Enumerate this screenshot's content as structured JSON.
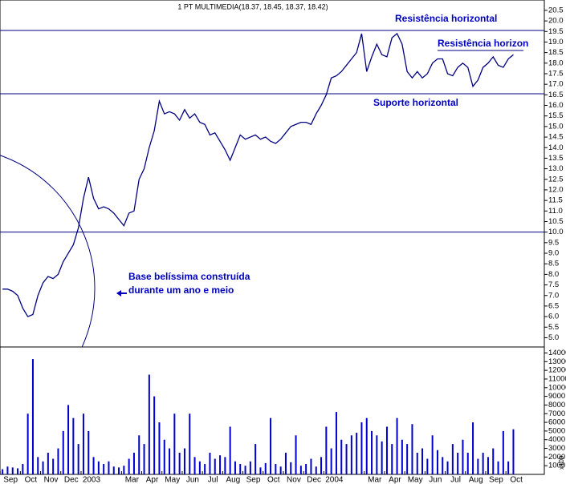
{
  "chart_data": [
    {
      "type": "line",
      "title": "1 PT MULTIMEDIA(18.37, 18.45, 18.37, 18.42)",
      "color": "#000080",
      "line_color": "#000080",
      "values": [
        7.3,
        7.3,
        7.2,
        7.0,
        6.4,
        6.0,
        6.1,
        7.0,
        7.6,
        7.9,
        7.8,
        8.0,
        8.6,
        9.0,
        9.4,
        10.2,
        11.6,
        12.6,
        11.6,
        11.1,
        11.2,
        11.1,
        10.9,
        10.6,
        10.3,
        10.9,
        11.0,
        12.5,
        13.0,
        14.0,
        14.8,
        16.2,
        15.6,
        15.7,
        15.6,
        15.3,
        15.8,
        15.4,
        15.6,
        15.2,
        15.1,
        14.6,
        14.7,
        14.3,
        13.9,
        13.4,
        14.0,
        14.6,
        14.4,
        14.5,
        14.6,
        14.4,
        14.5,
        14.3,
        14.2,
        14.4,
        14.7,
        15.0,
        15.1,
        15.2,
        15.2,
        15.1,
        15.6,
        16.0,
        16.5,
        17.3,
        17.4,
        17.6,
        17.9,
        18.2,
        18.5,
        19.4,
        17.6,
        18.3,
        18.9,
        18.4,
        18.3,
        19.2,
        19.4,
        18.9,
        17.6,
        17.3,
        17.6,
        17.3,
        17.5,
        18.0,
        18.2,
        18.2,
        17.5,
        17.4,
        17.8,
        18.0,
        17.8,
        16.9,
        17.2,
        17.8,
        18.0,
        18.3,
        17.9,
        17.8,
        18.2,
        18.4
      ],
      "ylim": [
        4.6,
        20.8
      ],
      "yticks": [
        {
          "value": 5,
          "label": "5.0"
        },
        5.5,
        {
          "value": 6,
          "label": "6.0"
        },
        6.5,
        {
          "value": 7,
          "label": "7.0"
        },
        7.5,
        {
          "value": 8,
          "label": "8.0"
        },
        8.5,
        {
          "value": 9,
          "label": "9.0"
        },
        9.5,
        {
          "value": 10,
          "label": "10.0"
        },
        10.5,
        {
          "value": 11,
          "label": "11.0"
        },
        11.5,
        {
          "value": 12,
          "label": "12.0"
        },
        12.5,
        {
          "value": 13,
          "label": "13.0"
        },
        13.5,
        {
          "value": 14,
          "label": "14.0"
        },
        14.5,
        {
          "value": 15,
          "label": "15.0"
        },
        15.5,
        {
          "value": 16,
          "label": "16.0"
        },
        16.5,
        {
          "value": 17,
          "label": "17.0"
        },
        17.5,
        {
          "value": 18,
          "label": "18.0"
        },
        18.5,
        {
          "value": 19,
          "label": "19.0"
        },
        19.5,
        {
          "value": 20,
          "label": "20.0"
        },
        20.5
      ],
      "hlines": [
        19.55,
        16.55,
        10
      ],
      "segments": [
        18.6
      ],
      "annotations": [
        "Resistência horizontal",
        "Resistência horizon",
        "Suporte horizontal",
        "Base belíssima construída",
        "durante um ano e meio"
      ]
    },
    {
      "type": "bar",
      "color": "#0000cc",
      "unit_label": "x100",
      "categories": [
        "Sep",
        null,
        null,
        null,
        "Oct",
        null,
        null,
        null,
        "Nov",
        null,
        null,
        null,
        "Dec",
        null,
        null,
        null,
        "2003",
        null,
        null,
        null,
        null,
        null,
        null,
        null,
        "Mar",
        null,
        null,
        null,
        "Apr",
        null,
        null,
        null,
        "May",
        null,
        null,
        null,
        "Jun",
        null,
        null,
        null,
        "Jul",
        null,
        null,
        null,
        "Aug",
        null,
        null,
        null,
        "Sep",
        null,
        null,
        null,
        "Oct",
        null,
        null,
        null,
        "Nov",
        null,
        null,
        null,
        "Dec",
        null,
        null,
        null,
        "2004",
        null,
        null,
        null,
        null,
        null,
        null,
        null,
        "Mar",
        null,
        null,
        null,
        "Apr",
        null,
        null,
        null,
        "May",
        null,
        null,
        null,
        "Jun",
        null,
        null,
        null,
        "Jul",
        null,
        null,
        null,
        "Aug",
        null,
        null,
        null,
        "Sep",
        null,
        null,
        null,
        "Oct",
        null
      ],
      "values": [
        600,
        900,
        800,
        700,
        1200,
        7000,
        13300,
        2000,
        1500,
        2500,
        1800,
        3000,
        5000,
        8000,
        6500,
        3500,
        7000,
        5000,
        2000,
        1500,
        1200,
        1500,
        900,
        800,
        1000,
        1800,
        2500,
        4500,
        3500,
        11500,
        9000,
        6000,
        4000,
        3000,
        7000,
        2500,
        3000,
        7000,
        2000,
        1500,
        1200,
        2500,
        1800,
        2200,
        2000,
        5500,
        1500,
        1200,
        1000,
        1500,
        3500,
        800,
        1300,
        6500,
        1200,
        900,
        2500,
        1400,
        4500,
        1000,
        1200,
        1800,
        900,
        2000,
        5500,
        3000,
        7200,
        4000,
        3500,
        4500,
        4800,
        6000,
        6500,
        5000,
        4500,
        3800,
        5500,
        3500,
        6500,
        4000,
        3500,
        5800,
        2500,
        3000,
        1800,
        4500,
        2800,
        2000,
        1500,
        3500,
        2500,
        4000,
        2500,
        6000,
        1800,
        2500,
        2000,
        3000,
        1500,
        5000,
        1500,
        5200
      ],
      "ylim": [
        0,
        14600
      ],
      "yticks": [
        1000,
        2000,
        3000,
        4000,
        5000,
        6000,
        7000,
        8000,
        9000,
        10000,
        11000,
        12000,
        13000,
        14000
      ]
    }
  ]
}
